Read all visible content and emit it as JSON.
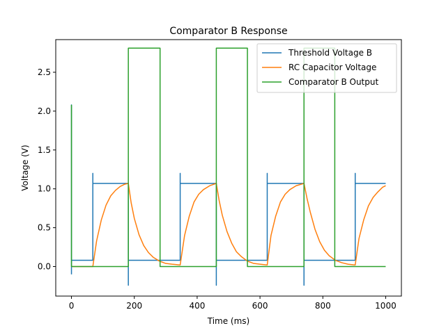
{
  "chart_data": {
    "type": "line",
    "title": "Comparator B Response",
    "xlabel": "Time (ms)",
    "ylabel": "Voltage (V)",
    "xlim": [
      -50,
      1050
    ],
    "ylim": [
      -0.38,
      2.92
    ],
    "xticks": [
      0,
      200,
      400,
      600,
      800,
      1000
    ],
    "yticks": [
      0.0,
      0.5,
      1.0,
      1.5,
      2.0,
      2.5
    ],
    "xtick_labels": [
      "0",
      "200",
      "400",
      "600",
      "800",
      "1000"
    ],
    "ytick_labels": [
      "0.0",
      "0.5",
      "1.0",
      "1.5",
      "2.0",
      "2.5"
    ],
    "grid": false,
    "legend": "top-right",
    "series": [
      {
        "name": "Threshold Voltage B",
        "color": "#1f77b4",
        "x": [
          0,
          0,
          0,
          0,
          68,
          68,
          68,
          181,
          181,
          181,
          346,
          346,
          346,
          461,
          461,
          461,
          623,
          623,
          623,
          740,
          740,
          740,
          903,
          903,
          903,
          1000
        ],
        "y": [
          -0.1,
          2.08,
          0.08,
          0.08,
          0.08,
          1.2,
          1.07,
          1.07,
          -0.24,
          0.08,
          0.08,
          1.2,
          1.07,
          1.07,
          -0.24,
          0.08,
          0.08,
          1.2,
          1.07,
          1.07,
          -0.24,
          0.08,
          0.08,
          1.2,
          1.07,
          1.07
        ]
      },
      {
        "name": "RC Capacitor Voltage",
        "color": "#ff7f0e",
        "x": [
          0,
          68,
          80,
          95,
          110,
          125,
          140,
          155,
          170,
          181,
          190,
          200,
          215,
          230,
          245,
          260,
          280,
          300,
          320,
          346,
          360,
          375,
          390,
          405,
          420,
          440,
          461,
          470,
          480,
          495,
          510,
          525,
          540,
          560,
          580,
          600,
          623,
          635,
          650,
          665,
          680,
          695,
          715,
          740,
          750,
          760,
          775,
          790,
          805,
          820,
          840,
          860,
          880,
          903,
          915,
          930,
          945,
          960,
          975,
          990,
          1000
        ],
        "y": [
          0.0,
          0.0,
          0.33,
          0.6,
          0.79,
          0.91,
          0.98,
          1.03,
          1.06,
          1.07,
          0.82,
          0.62,
          0.41,
          0.27,
          0.18,
          0.12,
          0.07,
          0.04,
          0.03,
          0.02,
          0.4,
          0.65,
          0.83,
          0.93,
          0.99,
          1.04,
          1.07,
          0.85,
          0.66,
          0.45,
          0.3,
          0.19,
          0.13,
          0.07,
          0.04,
          0.03,
          0.02,
          0.4,
          0.65,
          0.83,
          0.93,
          0.99,
          1.04,
          1.07,
          0.87,
          0.7,
          0.48,
          0.32,
          0.21,
          0.14,
          0.08,
          0.05,
          0.03,
          0.02,
          0.36,
          0.6,
          0.78,
          0.89,
          0.96,
          1.02,
          1.04
        ]
      },
      {
        "name": "Comparator B Output",
        "color": "#2ca02c",
        "x": [
          0,
          0,
          0,
          181,
          181,
          282,
          282,
          461,
          461,
          560,
          560,
          740,
          740,
          838,
          838,
          1000
        ],
        "y": [
          2.08,
          2.08,
          0.0,
          0.0,
          2.81,
          2.81,
          0.0,
          0.0,
          2.81,
          2.81,
          0.0,
          0.0,
          2.81,
          2.81,
          0.0,
          0.0
        ]
      }
    ]
  }
}
